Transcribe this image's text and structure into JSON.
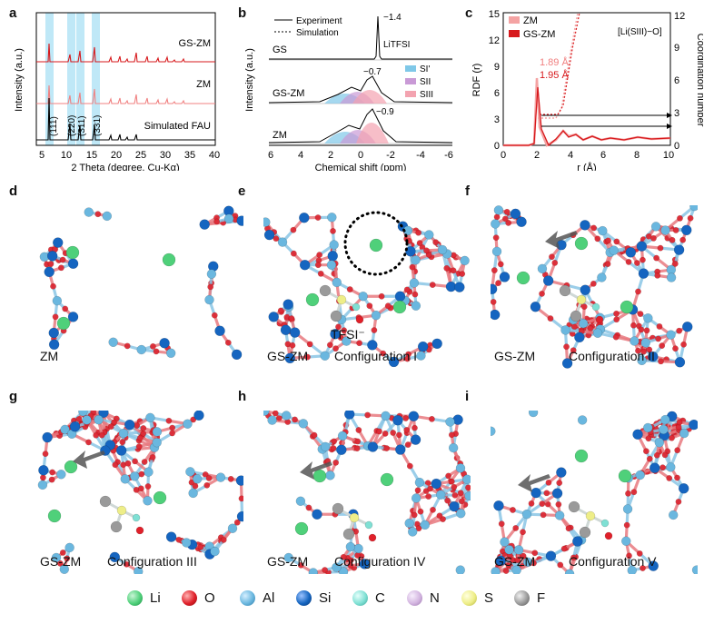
{
  "figure_letters": {
    "a": "a",
    "b": "b",
    "c": "c",
    "d": "d",
    "e": "e",
    "f": "f",
    "g": "g",
    "h": "h",
    "i": "i"
  },
  "panel_a": {
    "ylabel": "Intensity (a.u.)",
    "xlabel": "2 Theta (degree, Cu-Kα)",
    "ticks": [
      "5",
      "10",
      "15",
      "20",
      "25",
      "30",
      "35",
      "40"
    ],
    "trace_labels": [
      "GS-ZM",
      "ZM",
      "Simulated FAU"
    ],
    "peak_labels": [
      "(111)",
      "(220)",
      "(311)",
      "(331)"
    ],
    "colors": {
      "gs_zm": "#d7191c",
      "zm": "#f08080",
      "fau": "#000000",
      "highlight": "#bfe8f7"
    }
  },
  "panel_b": {
    "ylabel": "Intensity (a.u.)",
    "xlabel": "Chemical shift (ppm)",
    "ticks": [
      "6",
      "4",
      "2",
      "0",
      "-2",
      "-4",
      "-6"
    ],
    "legend_experiment": "Experiment",
    "legend_simulation": "Simulation",
    "trace_labels": [
      "GS",
      "GS-ZM",
      "ZM"
    ],
    "peak_values": [
      "−1.4",
      "−0.7",
      "−0.9"
    ],
    "litfsi": "LiTFSI",
    "site_labels": [
      "SI'",
      "SII",
      "SIII"
    ],
    "site_colors": [
      "#7fc8e8",
      "#c99ad6",
      "#f3a3b0"
    ]
  },
  "panel_c": {
    "ylabel_left": "RDF (r)",
    "ylabel_right": "Coordination number",
    "xlabel": "r (Å)",
    "xticks": [
      "0",
      "2",
      "4",
      "6",
      "8",
      "10"
    ],
    "yticks_left": [
      "0",
      "3",
      "6",
      "9",
      "12",
      "15"
    ],
    "yticks_right": [
      "0",
      "3",
      "6",
      "9",
      "12"
    ],
    "legend": [
      "ZM",
      "GS-ZM"
    ],
    "pair_label": "[Li(SIII)−O]",
    "peak_labels": [
      "1.89 Å",
      "1.95 Å"
    ],
    "colors": {
      "zm": "#f4a3a3",
      "gs_zm": "#d7191c"
    }
  },
  "structures": [
    {
      "caption_left": "ZM",
      "caption_right": ""
    },
    {
      "caption_left": "GS-ZM",
      "caption_right": "Configuration I",
      "tfsi": "TFSI⁻"
    },
    {
      "caption_left": "GS-ZM",
      "caption_right": "Configuration II"
    },
    {
      "caption_left": "GS-ZM",
      "caption_right": "Configuration III"
    },
    {
      "caption_left": "GS-ZM",
      "caption_right": "Configuration IV"
    },
    {
      "caption_left": "GS-ZM",
      "caption_right": "Configuration V"
    }
  ],
  "atom_legend": [
    {
      "label": "Li",
      "color": "#4fd07a"
    },
    {
      "label": "O",
      "color": "#e0202a"
    },
    {
      "label": "Al",
      "color": "#6ab7df"
    },
    {
      "label": "Si",
      "color": "#1565c0"
    },
    {
      "label": "C",
      "color": "#7fe0d4"
    },
    {
      "label": "N",
      "color": "#d3b5e0"
    },
    {
      "label": "S",
      "color": "#eeee88"
    },
    {
      "label": "F",
      "color": "#9a9a9a"
    }
  ]
}
